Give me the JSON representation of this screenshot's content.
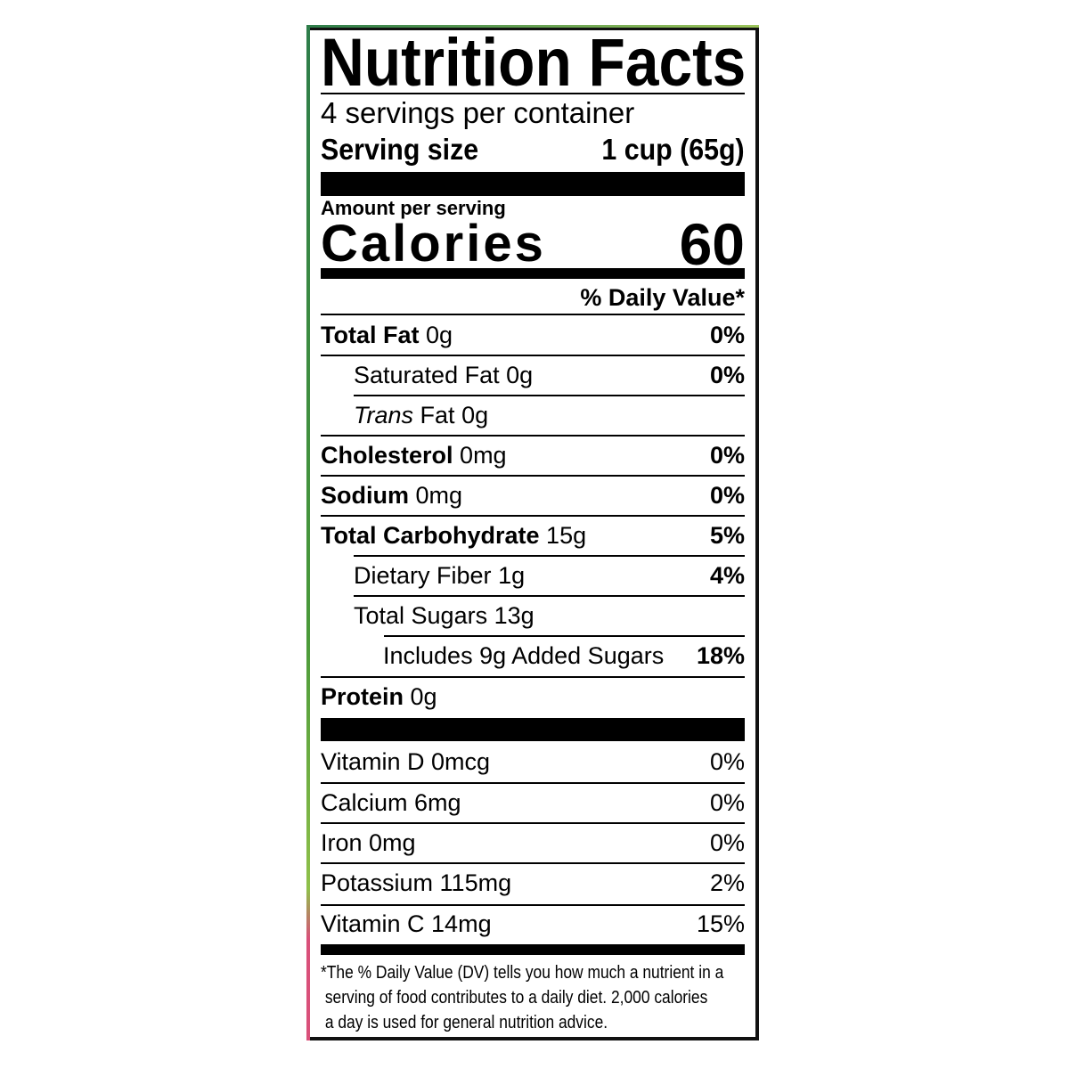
{
  "title": "Nutrition Facts",
  "servings_per_container": "4 servings per container",
  "serving_size": {
    "label": "Serving size",
    "value": "1 cup (65g)"
  },
  "amount_per_serving": "Amount per serving",
  "calories": {
    "label": "Calories",
    "value": "60"
  },
  "daily_value_header": "% Daily Value*",
  "nutrients": [
    {
      "name": "Total Fat",
      "amount": "0g",
      "dv": "0%"
    },
    {
      "name": "Saturated Fat",
      "amount": "0g",
      "dv": "0%"
    },
    {
      "name": "Trans",
      "name_suffix": "Fat",
      "amount": "0g",
      "dv": ""
    },
    {
      "name": "Cholesterol",
      "amount": "0mg",
      "dv": "0%"
    },
    {
      "name": "Sodium",
      "amount": "0mg",
      "dv": "0%"
    },
    {
      "name": "Total Carbohydrate",
      "amount": "15g",
      "dv": "5%"
    },
    {
      "name": "Dietary Fiber",
      "amount": "1g",
      "dv": "4%"
    },
    {
      "name": "Total Sugars",
      "amount": "13g",
      "dv": ""
    },
    {
      "name": "Includes 9g Added Sugars",
      "dv": "18%"
    },
    {
      "name": "Protein",
      "amount": "0g",
      "dv": ""
    }
  ],
  "vitamins": [
    {
      "text": "Vitamin D 0mcg",
      "dv": "0%"
    },
    {
      "text": "Calcium 6mg",
      "dv": "0%"
    },
    {
      "text": "Iron 0mg",
      "dv": "0%"
    },
    {
      "text": "Potassium 115mg",
      "dv": "2%"
    },
    {
      "text": "Vitamin C 14mg",
      "dv": "15%"
    }
  ],
  "footnote": [
    "*The % Daily Value (DV) tells you how much a nutrient in a",
    " serving of food contributes to a daily diet. 2,000 calories",
    " a day is used for general nutrition advice."
  ]
}
